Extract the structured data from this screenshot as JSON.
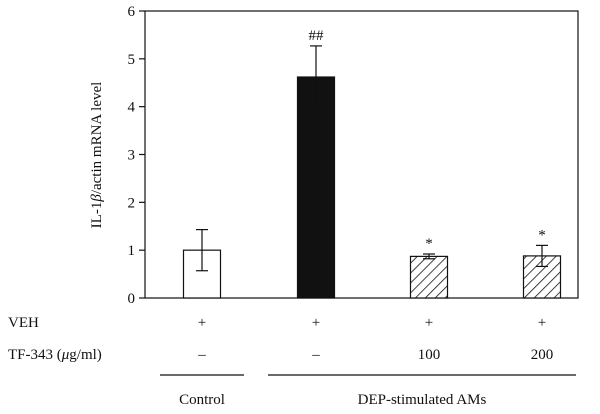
{
  "chart_data": {
    "type": "bar",
    "ylabel_prefix": "IL-1",
    "ylabel_greek": "β",
    "ylabel_suffix": "/actin mRNA level",
    "ylim": [
      0,
      6
    ],
    "yticks": [
      0,
      1,
      2,
      3,
      4,
      5,
      6
    ],
    "grid": false,
    "legend": "none",
    "bars": [
      {
        "value": 1.0,
        "error": 0.43,
        "fill": "white",
        "annotation": ""
      },
      {
        "value": 4.62,
        "error": 0.65,
        "fill": "black",
        "annotation": "##"
      },
      {
        "value": 0.87,
        "error": 0.05,
        "fill": "hatch",
        "annotation": "*"
      },
      {
        "value": 0.88,
        "error": 0.22,
        "fill": "hatch",
        "annotation": "*"
      }
    ],
    "treatment_rows": [
      {
        "label": "VEH",
        "cells": [
          "+",
          "+",
          "+",
          "+"
        ]
      },
      {
        "label_prefix": "TF-343 (",
        "label_greek": "μ",
        "label_suffix": "g/ml)",
        "cells": [
          "–",
          "–",
          "100",
          "200"
        ]
      }
    ],
    "groups": [
      {
        "label": "Control",
        "bars": [
          0
        ]
      },
      {
        "label": "DEP-stimulated AMs",
        "bars": [
          1,
          2,
          3
        ]
      }
    ]
  },
  "colors": {
    "axis": "#111111",
    "bar_stroke": "#111111",
    "solid_fill": "#111111",
    "open_fill": "#ffffff"
  }
}
